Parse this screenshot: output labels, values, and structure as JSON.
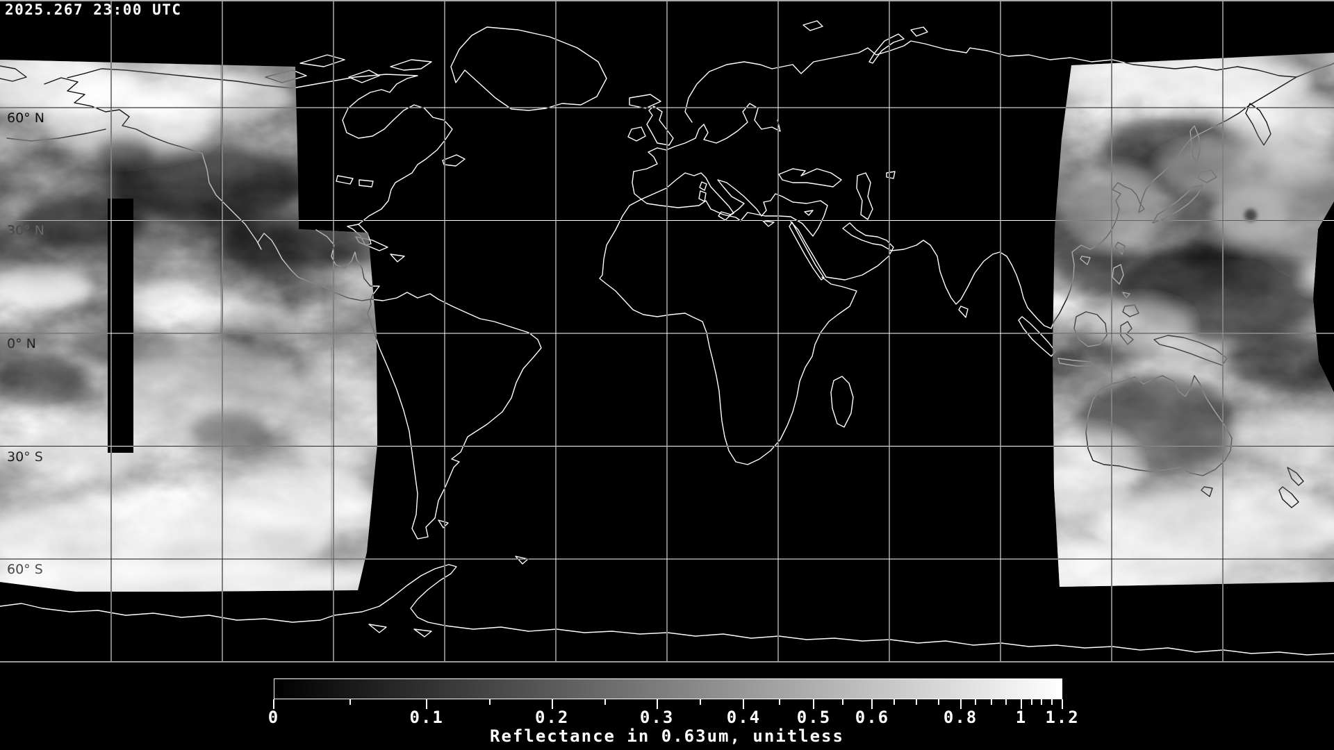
{
  "header": {
    "timestamp": "2025.267 23:00 UTC"
  },
  "map": {
    "projection": "equirectangular",
    "latitude_labels": [
      {
        "text": "60° N",
        "lat": 60
      },
      {
        "text": "30° N",
        "lat": 30
      },
      {
        "text": "0° N",
        "lat": 0
      },
      {
        "text": "30° S",
        "lat": -30
      },
      {
        "text": "60° S",
        "lat": -60
      }
    ],
    "graticule_step_deg": 30
  },
  "colorbar": {
    "caption": "Reflectance in 0.63um, unitless",
    "unit": "unitless",
    "wavelength": "0.63um",
    "min": 0,
    "max": 1.2,
    "ticks": [
      {
        "label": "0",
        "value": 0.0,
        "position": 0.0,
        "major": true
      },
      {
        "label": "",
        "value": 0.05,
        "position": 0.097,
        "major": false
      },
      {
        "label": "0.1",
        "value": 0.1,
        "position": 0.194,
        "major": true
      },
      {
        "label": "",
        "value": 0.15,
        "position": 0.274,
        "major": false
      },
      {
        "label": "0.2",
        "value": 0.2,
        "position": 0.353,
        "major": true
      },
      {
        "label": "",
        "value": 0.25,
        "position": 0.42,
        "major": false
      },
      {
        "label": "0.3",
        "value": 0.3,
        "position": 0.486,
        "major": true
      },
      {
        "label": "",
        "value": 0.35,
        "position": 0.541,
        "major": false
      },
      {
        "label": "0.4",
        "value": 0.4,
        "position": 0.596,
        "major": true
      },
      {
        "label": "",
        "value": 0.45,
        "position": 0.641,
        "major": false
      },
      {
        "label": "0.5",
        "value": 0.5,
        "position": 0.685,
        "major": true
      },
      {
        "label": "",
        "value": 0.55,
        "position": 0.722,
        "major": false
      },
      {
        "label": "0.6",
        "value": 0.6,
        "position": 0.759,
        "major": true
      },
      {
        "label": "",
        "value": 0.65,
        "position": 0.787,
        "major": false
      },
      {
        "label": "",
        "value": 0.7,
        "position": 0.815,
        "major": false
      },
      {
        "label": "",
        "value": 0.75,
        "position": 0.843,
        "major": false
      },
      {
        "label": "0.8",
        "value": 0.8,
        "position": 0.871,
        "major": true
      },
      {
        "label": "",
        "value": 0.85,
        "position": 0.89,
        "major": false
      },
      {
        "label": "",
        "value": 0.9,
        "position": 0.91,
        "major": false
      },
      {
        "label": "",
        "value": 0.95,
        "position": 0.929,
        "major": false
      },
      {
        "label": "1",
        "value": 1.0,
        "position": 0.948,
        "major": true
      },
      {
        "label": "",
        "value": 1.05,
        "position": 0.961,
        "major": false
      },
      {
        "label": "",
        "value": 1.1,
        "position": 0.974,
        "major": false
      },
      {
        "label": "",
        "value": 1.15,
        "position": 0.987,
        "major": false
      },
      {
        "label": "1.2",
        "value": 1.2,
        "position": 1.0,
        "major": true
      }
    ]
  },
  "colors": {
    "background": "#000000",
    "line": "#ffffff",
    "label_gray": "#a9a9a9",
    "bar_start": "#000000",
    "bar_end": "#ffffff"
  }
}
